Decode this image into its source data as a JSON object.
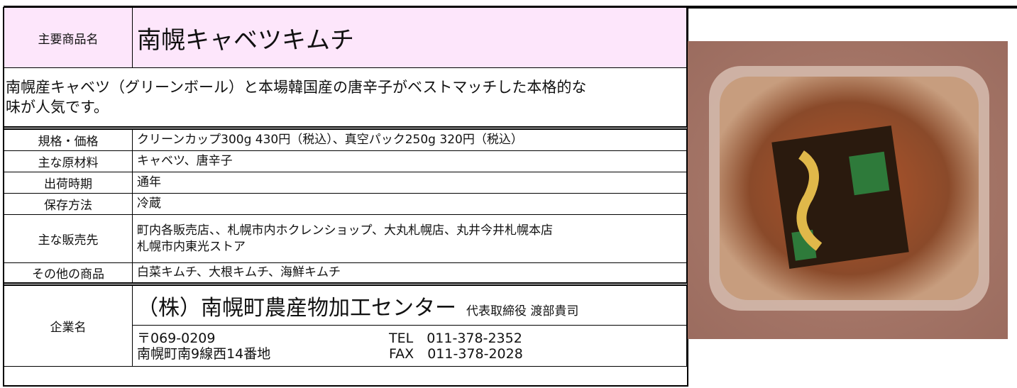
{
  "header": {
    "label": "主要商品名",
    "title": "南幌キャベツキムチ"
  },
  "description": {
    "lines": [
      "南幌産キャベツ（グリーンボール）と本場韓国産の唐辛子がベストマッチした本格的な",
      "味が人気です。"
    ]
  },
  "specs": [
    {
      "label": "規格・価格",
      "lines": [
        "クリーンカップ300g 430円（税込）、真空パック250g 320円（税込）"
      ]
    },
    {
      "label": "主な原材料",
      "lines": [
        "キャベツ、唐辛子"
      ]
    },
    {
      "label": "出荷時期",
      "lines": [
        "通年"
      ]
    },
    {
      "label": "保存方法",
      "lines": [
        "冷蔵"
      ]
    },
    {
      "label": "主な販売先",
      "lines": [
        "町内各販売店、、札幌市内ホクレンショップ、大丸札幌店、丸井今井札幌本店",
        "札幌市内東光ストア"
      ]
    },
    {
      "label": "その他の商品",
      "lines": [
        "白菜キムチ、大根キムチ、海鮮キムチ"
      ]
    }
  ],
  "company": {
    "label": "企業名",
    "name": "（株）南幌町農産物加工センター",
    "representative": "代表取締役 渡部貴司",
    "postal": "〒069-0209",
    "address": "南幌町南9線西14番地",
    "tel": "TEL　011-378-2352",
    "fax": "FAX　011-378-2028"
  }
}
